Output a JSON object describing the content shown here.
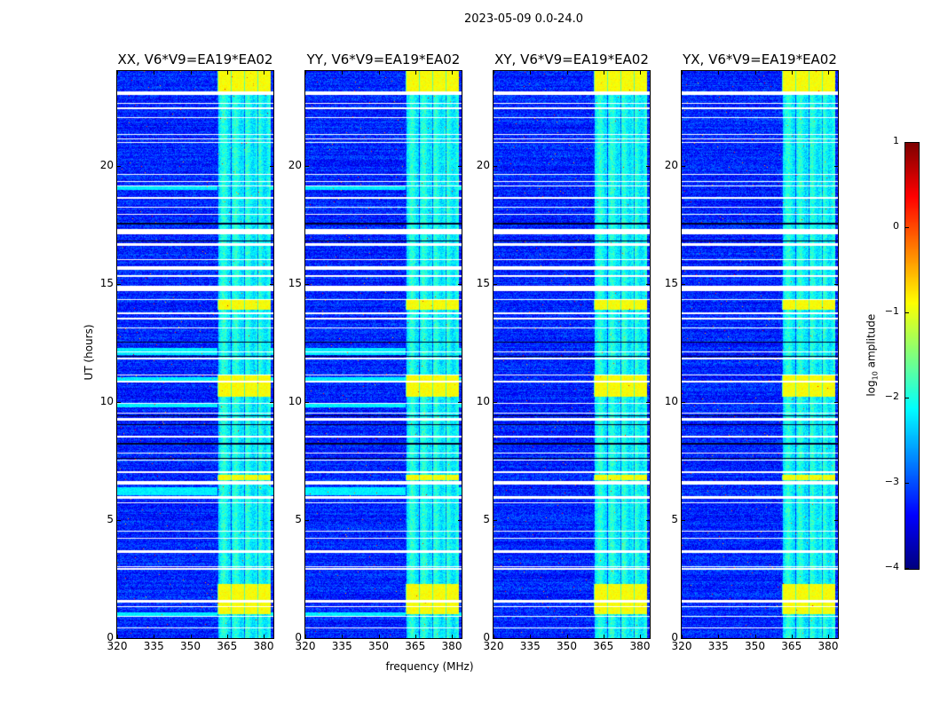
{
  "chart_data": {
    "type": "heatmap",
    "title": "2023-05-09 0.0-24.0",
    "xlabel": "frequency (MHz)",
    "ylabel": "UT (hours)",
    "xlim": [
      320,
      384
    ],
    "ylim": [
      0,
      24
    ],
    "xticks": [
      "320",
      "335",
      "350",
      "365",
      "380"
    ],
    "xtick_values": [
      320,
      335,
      350,
      365,
      380
    ],
    "yticks": [
      "0",
      "5",
      "10",
      "15",
      "20"
    ],
    "ytick_values": [
      0,
      5,
      10,
      15,
      20
    ],
    "panels": [
      {
        "title": "XX, V6*V9=EA19*EA02",
        "parallel": true
      },
      {
        "title": "YY, V6*V9=EA19*EA02",
        "parallel": true
      },
      {
        "title": "XY, V6*V9=EA19*EA02",
        "parallel": false
      },
      {
        "title": "YX, V6*V9=EA19*EA02",
        "parallel": false
      }
    ],
    "colorbar": {
      "label": "log10 amplitude",
      "label_main": "log",
      "label_sub": "10",
      "label_rest": " amplitude",
      "range": [
        -4,
        1
      ],
      "ticks": [
        "1",
        "0",
        "−1",
        "−2",
        "−3",
        "−4"
      ],
      "tick_values": [
        1,
        0,
        -1,
        -2,
        -3,
        -4
      ],
      "colormap": "jet"
    },
    "background_level": -3.2,
    "band_mhz": [
      361,
      383
    ],
    "band_level": -2.1,
    "bright_band_hours": [
      [
        23.15,
        24
      ],
      [
        10.2,
        11.1
      ],
      [
        1.0,
        2.3
      ],
      [
        13.9,
        14.3
      ],
      [
        6.7,
        6.9
      ]
    ],
    "flagged_hours": [
      [
        23.0,
        23.15
      ],
      [
        22.6,
        22.65
      ],
      [
        22.4,
        22.45
      ],
      [
        22.0,
        22.05
      ],
      [
        21.3,
        21.35
      ],
      [
        21.1,
        21.15
      ],
      [
        20.95,
        21.0
      ],
      [
        19.6,
        19.65
      ],
      [
        19.3,
        19.35
      ],
      [
        19.1,
        19.15
      ],
      [
        18.6,
        18.65
      ],
      [
        18.2,
        18.25
      ],
      [
        17.9,
        17.95
      ],
      [
        17.1,
        17.3
      ],
      [
        16.6,
        16.7
      ],
      [
        16.0,
        16.05
      ],
      [
        15.6,
        15.75
      ],
      [
        15.3,
        15.35
      ],
      [
        14.7,
        14.9
      ],
      [
        14.3,
        14.35
      ],
      [
        13.7,
        13.8
      ],
      [
        13.5,
        13.55
      ],
      [
        13.1,
        13.15
      ],
      [
        12.1,
        12.15
      ],
      [
        11.8,
        11.85
      ],
      [
        11.1,
        11.15
      ],
      [
        10.8,
        10.9
      ],
      [
        9.9,
        9.95
      ],
      [
        9.5,
        9.55
      ],
      [
        9.2,
        9.3
      ],
      [
        8.5,
        8.55
      ],
      [
        7.8,
        7.85
      ],
      [
        7.5,
        7.55
      ],
      [
        7.0,
        7.05
      ],
      [
        6.5,
        6.65
      ],
      [
        5.9,
        6.0
      ],
      [
        5.7,
        5.75
      ],
      [
        4.5,
        4.55
      ],
      [
        4.2,
        4.25
      ],
      [
        3.6,
        3.7
      ],
      [
        3.0,
        3.05
      ],
      [
        2.9,
        2.95
      ],
      [
        1.5,
        1.6
      ],
      [
        1.3,
        1.35
      ],
      [
        0.9,
        0.95
      ],
      [
        0.4,
        0.45
      ]
    ],
    "dark_hours": [
      [
        17.5,
        17.56
      ],
      [
        16.8,
        16.83
      ],
      [
        11.9,
        11.93
      ],
      [
        9.4,
        9.43
      ],
      [
        8.2,
        8.26
      ],
      [
        7.6,
        7.63
      ],
      [
        7.2,
        7.23
      ],
      [
        9.0,
        9.05
      ],
      [
        12.5,
        12.53
      ]
    ],
    "parallel_cyan_hours": [
      [
        6.05,
        6.4
      ],
      [
        0.95,
        1.1
      ],
      [
        9.75,
        9.95
      ],
      [
        12.0,
        12.3
      ],
      [
        10.9,
        11.05
      ],
      [
        18.95,
        19.1
      ]
    ]
  }
}
